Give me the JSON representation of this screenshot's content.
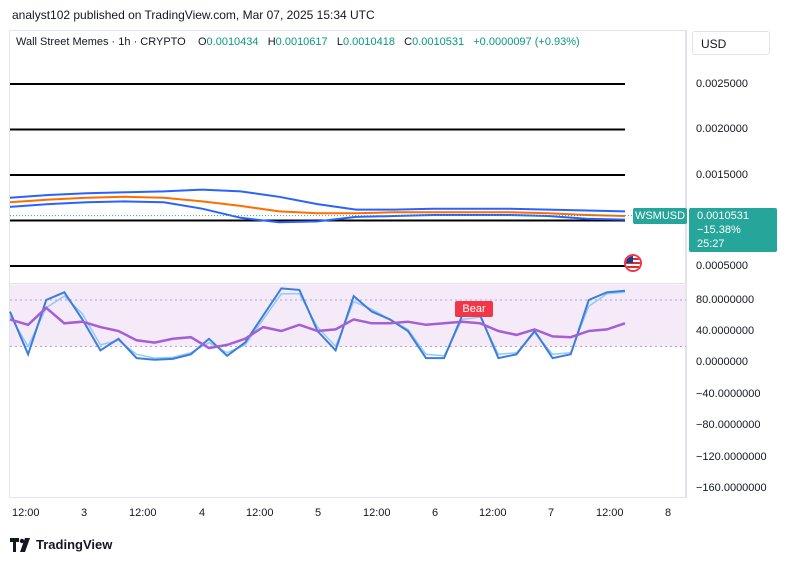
{
  "publisher_line": "analyst102 published on TradingView.com, Mar 07, 2025 15:34 UTC",
  "legend": {
    "symbol": "Wall Street Memes · 1h · CRYPTO",
    "o_label": "O",
    "o_value": "0.0010434",
    "h_label": "H",
    "h_value": "0.0010617",
    "l_label": "L",
    "l_value": "0.0010418",
    "c_label": "C",
    "c_value": "0.0010531",
    "change": "+0.0000097 (+0.93%)"
  },
  "currency_button": "USD",
  "price_axis": [
    "0.0025000",
    "0.0020000",
    "0.0015000",
    "0.0010531",
    "0.0005000"
  ],
  "osc_axis": [
    "80.0000000",
    "40.0000000",
    "0.0000000",
    "−40.0000000",
    "−80.0000000",
    "−120.0000000",
    "−160.0000000"
  ],
  "time_axis": [
    "12:00",
    "3",
    "12:00",
    "4",
    "12:00",
    "5",
    "12:00",
    "6",
    "12:00",
    "7",
    "12:00",
    "8"
  ],
  "ticker_tag": "WSMUSD",
  "last_price_box": {
    "price": "0.0010531",
    "change_pct": "−15.38%",
    "countdown": "25:27"
  },
  "signal_label": "Bear",
  "brand": "TradingView",
  "colors": {
    "green": "#26a69a",
    "red": "#f23645",
    "blue": "#2962ff",
    "orange": "#ff6d00",
    "purple": "#9c27b0"
  },
  "chart_data": {
    "type": "line",
    "price_pane": {
      "horizontal_levels": [
        0.0025,
        0.002,
        0.0015,
        0.001,
        0.0005
      ],
      "last_close": 0.0010531,
      "band_upper": [
        0.00125,
        0.00128,
        0.0013,
        0.00131,
        0.00132,
        0.00134,
        0.00132,
        0.00126,
        0.00118,
        0.00112,
        0.00112,
        0.00113,
        0.00113,
        0.00113,
        0.00112,
        0.00111,
        0.0011
      ],
      "band_lower": [
        0.00115,
        0.00118,
        0.0012,
        0.00121,
        0.0012,
        0.00113,
        0.00103,
        0.00098,
        0.00099,
        0.00104,
        0.00105,
        0.00106,
        0.00106,
        0.00106,
        0.00105,
        0.00102,
        0.00101
      ],
      "moving_average": [
        0.0012,
        0.00123,
        0.00125,
        0.00126,
        0.00125,
        0.00121,
        0.00116,
        0.0011,
        0.00108,
        0.00108,
        0.00109,
        0.00109,
        0.00109,
        0.00109,
        0.00108,
        0.00106,
        0.00105
      ]
    },
    "oscillator_pane": {
      "ylim": [
        -170,
        100
      ],
      "stoch_k": [
        65,
        10,
        80,
        90,
        55,
        15,
        30,
        5,
        3,
        4,
        10,
        30,
        8,
        25,
        60,
        95,
        93,
        40,
        15,
        85,
        65,
        55,
        40,
        5,
        5,
        60,
        60,
        5,
        10,
        40,
        5,
        10,
        80,
        90,
        92
      ],
      "stoch_d": [
        60,
        20,
        70,
        85,
        62,
        22,
        28,
        10,
        5,
        6,
        12,
        25,
        12,
        22,
        55,
        88,
        88,
        45,
        20,
        78,
        68,
        55,
        42,
        10,
        8,
        55,
        58,
        10,
        12,
        38,
        10,
        12,
        72,
        88,
        90
      ],
      "rsi": [
        55,
        48,
        70,
        50,
        52,
        45,
        40,
        28,
        25,
        30,
        32,
        18,
        22,
        30,
        45,
        40,
        48,
        40,
        42,
        55,
        50,
        50,
        52,
        48,
        50,
        52,
        50,
        40,
        35,
        42,
        33,
        32,
        40,
        42,
        50
      ]
    }
  }
}
